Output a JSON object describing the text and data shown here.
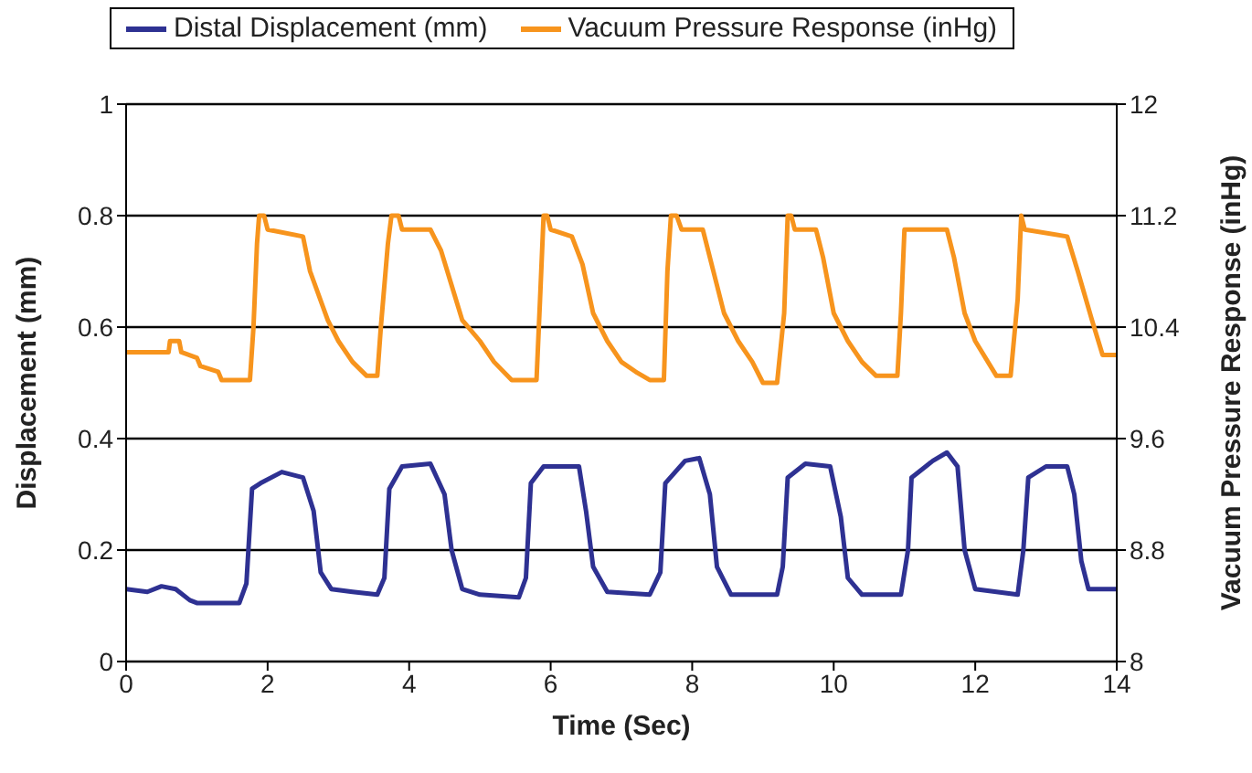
{
  "chart_data": {
    "type": "line",
    "xlabel": "Time (Sec)",
    "ylabel": "Displacement (mm)",
    "y2label": "Vacuum Pressure Response (inHg)",
    "xlim": [
      0,
      14
    ],
    "xticks": [
      0,
      2,
      4,
      6,
      8,
      10,
      12,
      14
    ],
    "ylim": [
      0,
      1
    ],
    "yticks": [
      0,
      0.2,
      0.4,
      0.6,
      0.8,
      1
    ],
    "y2lim": [
      8,
      12
    ],
    "y2ticks": [
      8,
      8.8,
      9.6,
      10.4,
      11.2,
      12
    ],
    "grid": "y",
    "legend": "top",
    "marker": "none",
    "line_style": "solid",
    "series": [
      {
        "name": "Distal Displacement (mm)",
        "color": "#2e3192",
        "x": [
          0,
          0.3,
          0.5,
          0.7,
          0.9,
          1.0,
          1.6,
          1.7,
          1.78,
          1.9,
          2.2,
          2.5,
          2.65,
          2.75,
          2.9,
          3.2,
          3.55,
          3.65,
          3.72,
          3.9,
          4.3,
          4.5,
          4.6,
          4.75,
          5.0,
          5.55,
          5.65,
          5.72,
          5.9,
          6.4,
          6.5,
          6.6,
          6.8,
          7.4,
          7.55,
          7.62,
          7.9,
          8.1,
          8.25,
          8.35,
          8.55,
          9.2,
          9.28,
          9.35,
          9.6,
          9.95,
          10.1,
          10.2,
          10.4,
          10.95,
          11.05,
          11.1,
          11.4,
          11.6,
          11.75,
          11.85,
          12.0,
          12.6,
          12.68,
          12.75,
          13.0,
          13.3,
          13.4,
          13.5,
          13.6,
          14
        ],
        "values": [
          0.13,
          0.125,
          0.135,
          0.13,
          0.11,
          0.105,
          0.105,
          0.14,
          0.31,
          0.32,
          0.34,
          0.33,
          0.27,
          0.16,
          0.13,
          0.125,
          0.12,
          0.15,
          0.31,
          0.35,
          0.355,
          0.3,
          0.2,
          0.13,
          0.12,
          0.115,
          0.15,
          0.32,
          0.35,
          0.35,
          0.27,
          0.17,
          0.125,
          0.12,
          0.16,
          0.32,
          0.36,
          0.365,
          0.3,
          0.17,
          0.12,
          0.12,
          0.17,
          0.33,
          0.355,
          0.35,
          0.26,
          0.15,
          0.12,
          0.12,
          0.2,
          0.33,
          0.36,
          0.375,
          0.35,
          0.2,
          0.13,
          0.12,
          0.2,
          0.33,
          0.35,
          0.35,
          0.3,
          0.18,
          0.13,
          0.13
        ]
      },
      {
        "name": "Vacuum Pressure Response (inHg)",
        "color": "#f7941d",
        "axis": "y2",
        "x": [
          0,
          0.6,
          0.62,
          0.75,
          0.78,
          1.0,
          1.05,
          1.3,
          1.35,
          1.75,
          1.8,
          1.85,
          1.88,
          1.95,
          2.0,
          2.5,
          2.6,
          2.85,
          3.0,
          3.2,
          3.4,
          3.55,
          3.6,
          3.7,
          3.75,
          3.85,
          3.9,
          4.3,
          4.45,
          4.6,
          4.75,
          5.0,
          5.2,
          5.45,
          5.8,
          5.85,
          5.9,
          5.95,
          6.0,
          6.3,
          6.45,
          6.6,
          6.8,
          7.0,
          7.2,
          7.4,
          7.6,
          7.65,
          7.7,
          7.78,
          7.85,
          8.15,
          8.3,
          8.45,
          8.65,
          8.85,
          9.0,
          9.2,
          9.3,
          9.35,
          9.4,
          9.45,
          9.75,
          9.85,
          10.0,
          10.2,
          10.4,
          10.6,
          10.9,
          10.95,
          11.0,
          11.6,
          11.7,
          11.85,
          12.0,
          12.3,
          12.5,
          12.6,
          12.65,
          12.7,
          13.3,
          13.45,
          13.65,
          13.8,
          14
        ],
        "values": [
          10.22,
          10.22,
          10.3,
          10.3,
          10.22,
          10.18,
          10.12,
          10.08,
          10.02,
          10.02,
          10.4,
          11.0,
          11.2,
          11.2,
          11.1,
          11.05,
          10.8,
          10.45,
          10.3,
          10.15,
          10.05,
          10.05,
          10.4,
          11.0,
          11.2,
          11.2,
          11.1,
          11.1,
          10.95,
          10.7,
          10.45,
          10.3,
          10.15,
          10.02,
          10.02,
          10.6,
          11.2,
          11.2,
          11.1,
          11.05,
          10.85,
          10.5,
          10.3,
          10.15,
          10.08,
          10.02,
          10.02,
          10.8,
          11.2,
          11.2,
          11.1,
          11.1,
          10.8,
          10.5,
          10.3,
          10.15,
          10.0,
          10.0,
          10.5,
          11.2,
          11.2,
          11.1,
          11.1,
          10.9,
          10.5,
          10.3,
          10.15,
          10.05,
          10.05,
          10.5,
          11.1,
          11.1,
          10.9,
          10.5,
          10.3,
          10.05,
          10.05,
          10.6,
          11.2,
          11.1,
          11.05,
          10.8,
          10.45,
          10.2,
          10.2
        ]
      }
    ]
  }
}
